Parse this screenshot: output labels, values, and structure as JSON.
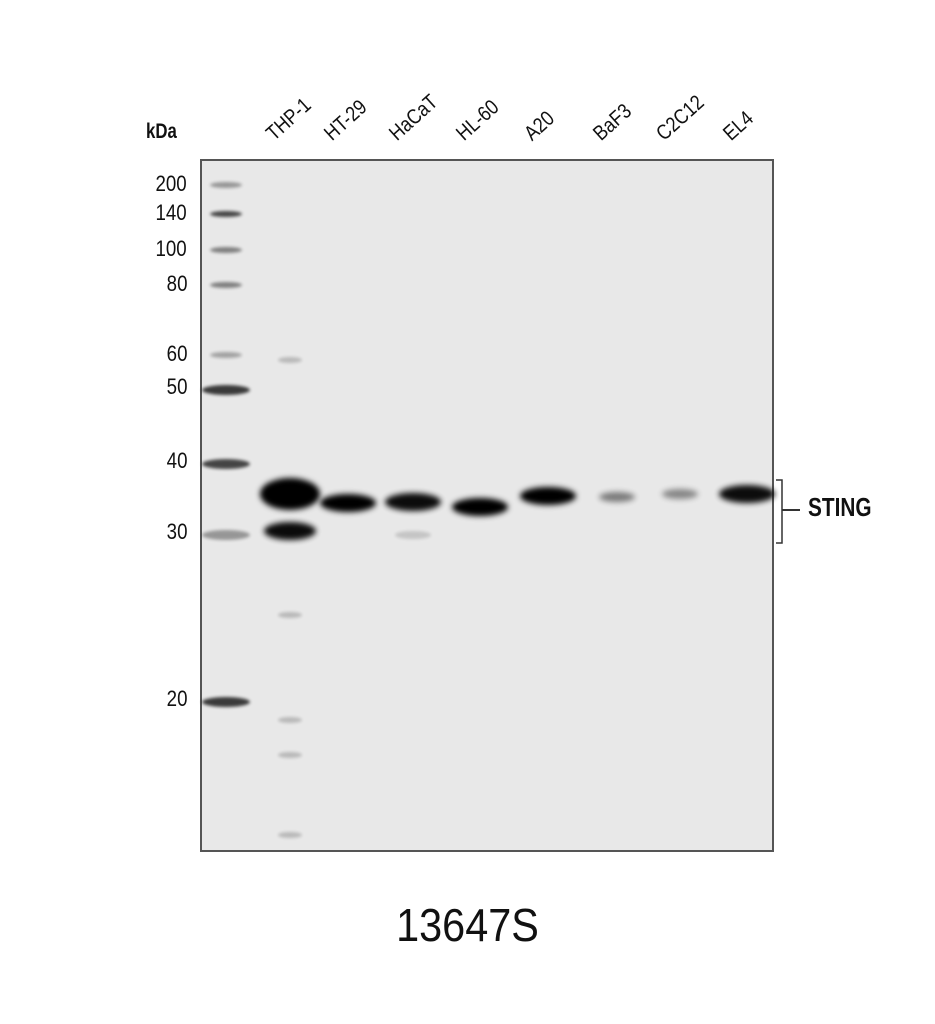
{
  "units_label": "kDa",
  "markers": [
    "200",
    "140",
    "100",
    "80",
    "60",
    "50",
    "40",
    "30",
    "20"
  ],
  "lanes": [
    "THP-1",
    "HT-29",
    "HaCaT",
    "HL-60",
    "A20",
    "BaF3",
    "C2C12",
    "EL4"
  ],
  "target_label": "STING",
  "catalog_number": "13647S",
  "band_intensity": [
    1.0,
    0.95,
    0.9,
    0.95,
    0.95,
    0.45,
    0.4,
    0.9
  ]
}
